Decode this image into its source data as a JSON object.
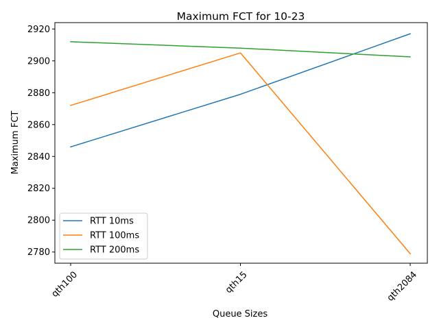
{
  "chart_data": {
    "type": "line",
    "title": "Maximum FCT for 10-23",
    "xlabel": "Queue Sizes",
    "ylabel": "Maximum FCT",
    "categories": [
      "qth100",
      "qth15",
      "qth2084"
    ],
    "ylim": [
      2773,
      2924
    ],
    "yticks": [
      2780,
      2800,
      2820,
      2840,
      2860,
      2880,
      2900,
      2920
    ],
    "grid": false,
    "legend_position": "lower-left",
    "series": [
      {
        "name": "RTT 10ms",
        "color": "#1f77b4",
        "values": [
          2846,
          2879,
          2917
        ]
      },
      {
        "name": "RTT 100ms",
        "color": "#ff7f0e",
        "values": [
          2872,
          2905,
          2779
        ]
      },
      {
        "name": "RTT 200ms",
        "color": "#2ca02c",
        "values": [
          2912,
          2908,
          2902.5
        ]
      }
    ]
  }
}
